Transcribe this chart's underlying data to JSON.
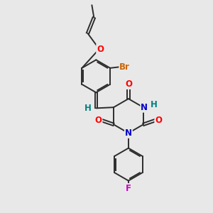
{
  "bg_color": "#e8e8e8",
  "bond_color": "#2c2c2c",
  "atom_colors": {
    "O": "#ff0000",
    "N": "#0000cd",
    "H": "#008080",
    "Br": "#cc6600",
    "F": "#cc00cc"
  },
  "font_size": 8.5,
  "figsize": [
    3.0,
    3.0
  ],
  "dpi": 100,
  "lw": 1.4
}
